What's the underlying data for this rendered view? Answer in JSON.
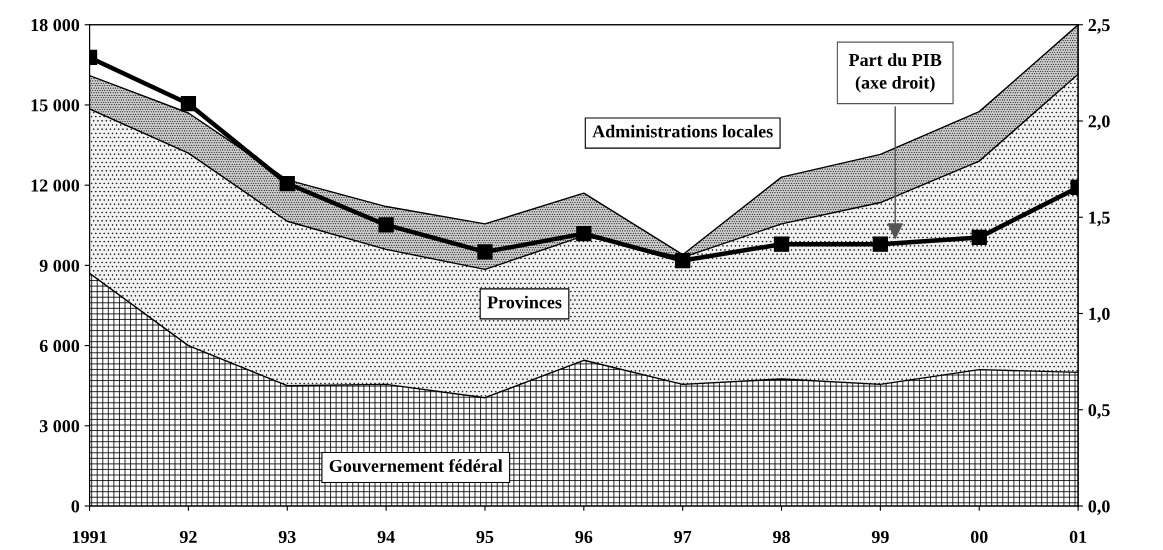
{
  "chart_data": {
    "type": "area",
    "stacked": true,
    "categories": [
      "1991",
      "92",
      "93",
      "94",
      "95",
      "96",
      "97",
      "98",
      "99",
      "00",
      "01"
    ],
    "series": [
      {
        "name": "Gouvernement fédéral",
        "color": "#ffffff",
        "values": [
          8700,
          6000,
          4500,
          4550,
          4050,
          5450,
          4550,
          4750,
          4550,
          5100,
          5000
        ]
      },
      {
        "name": "Provinces",
        "color": "#f2f2f2",
        "values": [
          6150,
          7200,
          6150,
          5050,
          4800,
          4650,
          4750,
          5800,
          6800,
          7800,
          11150
        ]
      },
      {
        "name": "Administrations locales",
        "color": "#d0d0d0",
        "values": [
          1250,
          1500,
          1550,
          1600,
          1700,
          1600,
          100,
          1750,
          1800,
          1850,
          1850
        ]
      },
      {
        "name": "Part du PIB\n(axe droit)",
        "type": "line",
        "axis": "y2",
        "color": "#000000",
        "marker": "square",
        "values": [
          2.33,
          2.09,
          1.675,
          1.46,
          1.32,
          1.415,
          1.275,
          1.36,
          1.36,
          1.395,
          1.655
        ]
      }
    ],
    "ylim": [
      0,
      18000
    ],
    "yticks": [
      {
        "value": 0,
        "label": "0"
      },
      {
        "value": 3000,
        "label": "3 000"
      },
      {
        "value": 6000,
        "label": "6 000"
      },
      {
        "value": 9000,
        "label": "9 000"
      },
      {
        "value": 12000,
        "label": "12 000"
      },
      {
        "value": 15000,
        "label": "15 000"
      },
      {
        "value": 18000,
        "label": "18 000"
      }
    ],
    "y2lim": [
      0,
      2.5
    ],
    "y2ticks": [
      {
        "value": 0,
        "label": "0,0"
      },
      {
        "value": 0.5,
        "label": "0,5"
      },
      {
        "value": 1.0,
        "label": "1,0"
      },
      {
        "value": 1.5,
        "label": "1,5"
      },
      {
        "value": 2.0,
        "label": "2,0"
      },
      {
        "value": 2.5,
        "label": "2,5"
      }
    ],
    "grid": false,
    "legend": false
  }
}
